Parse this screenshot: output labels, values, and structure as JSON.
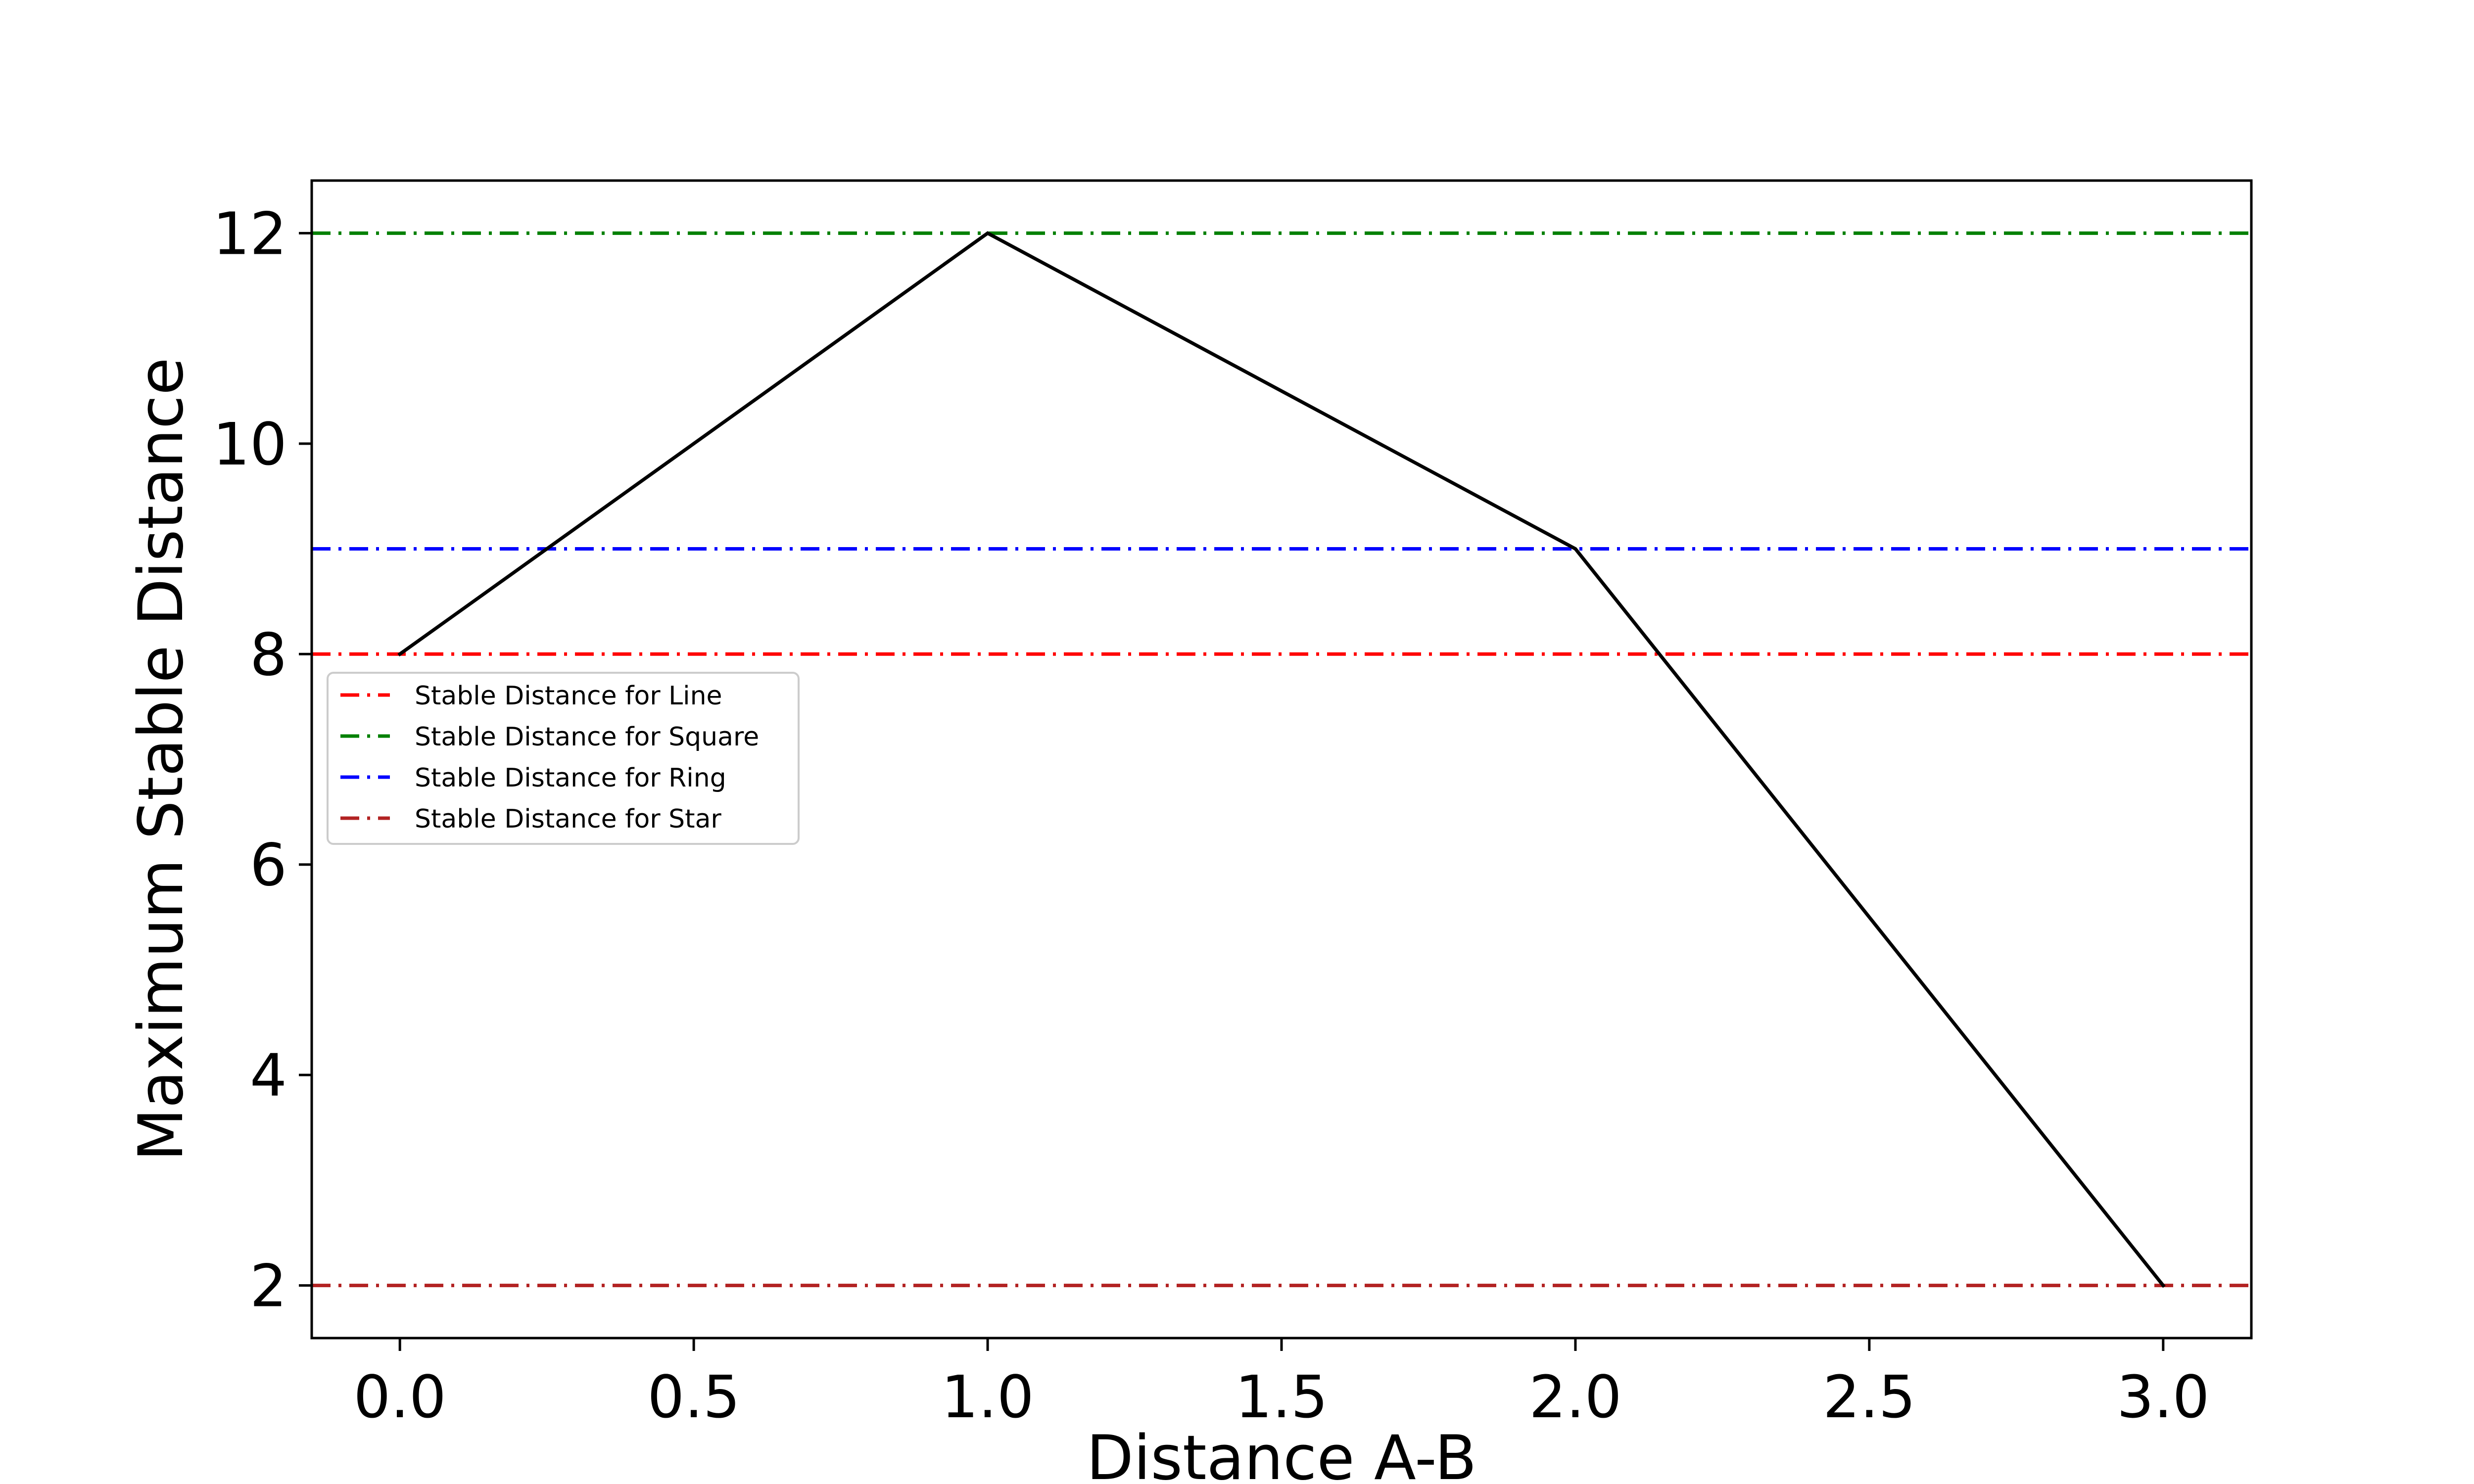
{
  "chart_data": {
    "type": "line",
    "title": "",
    "xlabel": "Distance A-B",
    "ylabel": "Maximum Stable Distance",
    "xlim": [
      -0.15,
      3.15
    ],
    "ylim": [
      1.5,
      12.5
    ],
    "xticks": [
      0.0,
      0.5,
      1.0,
      1.5,
      2.0,
      2.5,
      3.0
    ],
    "xtick_labels": [
      "0.0",
      "0.5",
      "1.0",
      "1.5",
      "2.0",
      "2.5",
      "3.0"
    ],
    "yticks": [
      2,
      4,
      6,
      8,
      10,
      12
    ],
    "ytick_labels": [
      "2",
      "4",
      "6",
      "8",
      "10",
      "12"
    ],
    "grid": false,
    "legend_position": "center-left",
    "series": [
      {
        "x": [
          0.0,
          1.0,
          2.0,
          3.0
        ],
        "y": [
          8,
          12,
          9,
          2
        ],
        "color": "#000000",
        "style": "solid"
      }
    ],
    "reference_lines": [
      {
        "name": "Stable Distance for Line",
        "y": 8,
        "color": "#ff0000",
        "style": "dashdot"
      },
      {
        "name": "Stable Distance for Square",
        "y": 12,
        "color": "#008000",
        "style": "dashdot"
      },
      {
        "name": "Stable Distance for Ring",
        "y": 9,
        "color": "#0000ff",
        "style": "dashdot"
      },
      {
        "name": "Stable Distance for Star",
        "y": 2,
        "color": "#b22222",
        "style": "dashdot"
      }
    ]
  }
}
